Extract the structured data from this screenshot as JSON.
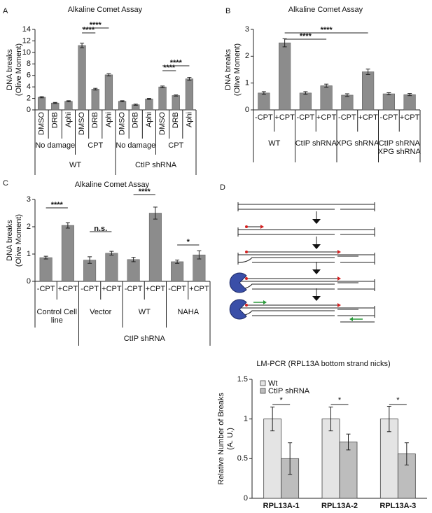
{
  "chart_data": [
    {
      "type": "bar",
      "label": "A",
      "title": "Alkaline Comet Assay",
      "y_label": [
        "DNA breaks",
        "(Olive Moment)"
      ],
      "categories": [
        "DMSO",
        "DRB",
        "Aphi",
        "DMSO",
        "DRB",
        "Aphi",
        "DMSO",
        "DRB",
        "Aphi",
        "DMSO",
        "DRB",
        "Aphi"
      ],
      "values": [
        2.2,
        1.2,
        1.5,
        11.2,
        3.6,
        6.1,
        1.5,
        0.9,
        1.9,
        4.0,
        2.5,
        5.4
      ],
      "errors": [
        0.1,
        0.1,
        0.1,
        0.4,
        0.15,
        0.2,
        0.1,
        0.1,
        0.1,
        0.15,
        0.1,
        0.25
      ],
      "groups": [
        "No damage",
        "CPT",
        "No damage",
        "CPT"
      ],
      "outer_groups": [
        "WT",
        "CtIP shRNA"
      ],
      "annotations": [
        "****",
        "****",
        "****",
        "****"
      ],
      "ylim": [
        0,
        14
      ],
      "yticks": [
        0,
        2,
        4,
        6,
        8,
        10,
        12,
        14
      ],
      "color": "#8c8c8c"
    },
    {
      "type": "bar",
      "label": "B",
      "title": "Alkaline Comet Assay",
      "y_label": [
        "DNA breaks",
        "(Olive Moment)"
      ],
      "categories": [
        "-CPT",
        "+CPT",
        "-CPT",
        "+CPT",
        "-CPT",
        "+CPT",
        "-CPT",
        "+CPT"
      ],
      "values": [
        0.63,
        2.5,
        0.63,
        0.9,
        0.55,
        1.42,
        0.6,
        0.57
      ],
      "errors": [
        0.05,
        0.15,
        0.05,
        0.06,
        0.05,
        0.1,
        0.04,
        0.04
      ],
      "groups": [
        "WT",
        "CtIP shRNA",
        "XPG shRNA",
        [
          "CtIP shRNA",
          "XPG shRNA"
        ]
      ],
      "annotations": [
        "****",
        "****"
      ],
      "ylim": [
        0,
        3
      ],
      "yticks": [
        0,
        1,
        2,
        3
      ],
      "color": "#8c8c8c"
    },
    {
      "type": "bar",
      "label": "C",
      "title": "Alkaline Comet Assay",
      "y_label": [
        "DNA breaks",
        "(Olive Moment)"
      ],
      "categories": [
        "-CPT",
        "+CPT",
        "-CPT",
        "+CPT",
        "-CPT",
        "+CPT",
        "-CPT",
        "+CPT"
      ],
      "values": [
        0.87,
        2.05,
        0.78,
        1.03,
        0.8,
        2.5,
        0.72,
        0.97
      ],
      "errors": [
        0.05,
        0.1,
        0.12,
        0.07,
        0.08,
        0.22,
        0.06,
        0.15
      ],
      "groups": [
        [
          "Control Cell",
          "line"
        ],
        "Vector",
        "WT",
        "NAHA"
      ],
      "outer_groups": [
        "CtIP shRNA"
      ],
      "annotations": [
        "****",
        "n.s.",
        "****",
        "*"
      ],
      "ylim": [
        0,
        3
      ],
      "yticks": [
        0,
        1,
        2,
        3
      ],
      "color": "#8c8c8c"
    },
    {
      "type": "diagram",
      "label": "D"
    },
    {
      "type": "grouped_bar",
      "title": "LM-PCR (RPL13A bottom strand nicks)",
      "y_label": [
        "Relative Number of Breaks",
        "(A. U.)"
      ],
      "categories": [
        "RPL13A-1",
        "RPL13A-2",
        "RPL13A-3"
      ],
      "series": [
        {
          "name": "Wt",
          "color": "#e4e4e4",
          "values": [
            1,
            1,
            1
          ],
          "errors": [
            0.15,
            0.15,
            0.16
          ]
        },
        {
          "name": "CtIP shRNA",
          "color": "#bdbdbd",
          "values": [
            0.5,
            0.71,
            0.56
          ],
          "errors": [
            0.2,
            0.1,
            0.14
          ]
        }
      ],
      "annotations": [
        "*",
        "*",
        "*"
      ],
      "ylim": [
        0,
        1.5
      ],
      "yticks": [
        0,
        0.5,
        1,
        1.5
      ]
    }
  ]
}
